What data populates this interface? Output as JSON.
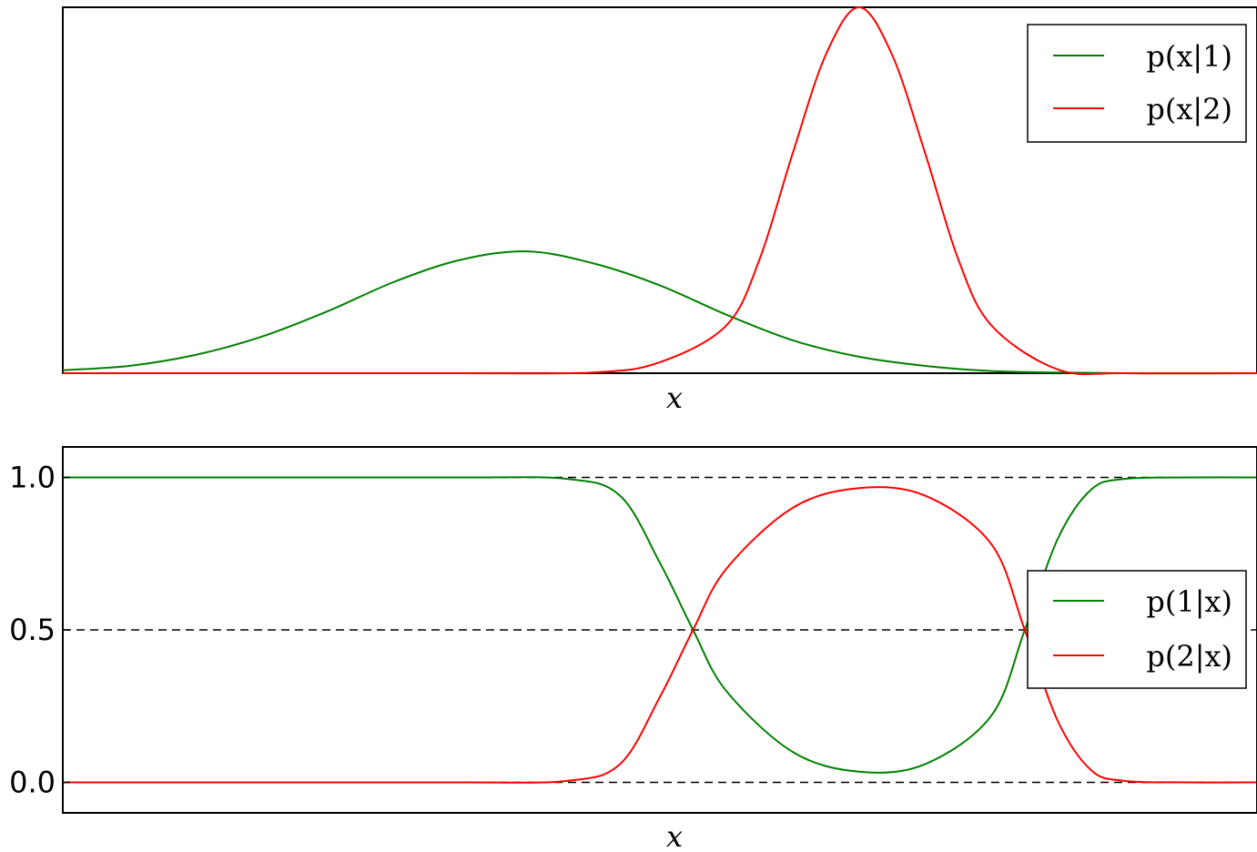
{
  "chart_data": [
    {
      "type": "line",
      "xlabel": "x",
      "ylabel": "",
      "xlim": [
        -4,
        5
      ],
      "ylim": [
        0,
        1.0
      ],
      "yticks": [],
      "legend": "top-right",
      "series": [
        {
          "name": "p(x|1)",
          "color": "#008000",
          "x": [
            -4.0,
            -3.5,
            -3.0,
            -2.5,
            -2.0,
            -1.5,
            -1.0,
            -0.5,
            0.0,
            0.5,
            1.0,
            1.5,
            2.0,
            2.5,
            3.0,
            3.5,
            4.0,
            4.5,
            5.0
          ],
          "y": [
            0.008,
            0.02,
            0.05,
            0.1,
            0.17,
            0.25,
            0.31,
            0.333,
            0.3,
            0.24,
            0.16,
            0.09,
            0.045,
            0.02,
            0.006,
            0.002,
            0.0,
            0.0,
            0.0
          ]
        },
        {
          "name": "p(x|2)",
          "color": "#ff0000",
          "x": [
            -4.0,
            -3.0,
            -2.0,
            -1.0,
            0.0,
            0.5,
            1.0,
            1.25,
            1.5,
            1.75,
            2.0,
            2.25,
            2.5,
            2.75,
            3.0,
            3.5,
            4.0,
            5.0
          ],
          "y": [
            0.0,
            0.0,
            0.0,
            0.0,
            0.002,
            0.03,
            0.13,
            0.31,
            0.6,
            0.87,
            1.0,
            0.87,
            0.6,
            0.31,
            0.13,
            0.01,
            0.0,
            0.0
          ]
        }
      ]
    },
    {
      "type": "line",
      "xlabel": "x",
      "ylabel": "",
      "xlim": [
        -4,
        5
      ],
      "ylim": [
        -0.1,
        1.1
      ],
      "yticks": [
        "0.0",
        "0.5",
        "1.0"
      ],
      "yticks_values": [
        0.0,
        0.5,
        1.0
      ],
      "hlines": [
        0.0,
        0.5,
        1.0
      ],
      "hline_style": "dashed",
      "legend": "center-right",
      "series": [
        {
          "name": "p(1|x)",
          "color": "#008000",
          "x": [
            -4.0,
            -3.0,
            -2.0,
            -1.0,
            -0.2,
            0.2,
            0.5,
            0.75,
            1.0,
            1.5,
            2.0,
            2.5,
            3.0,
            3.25,
            3.5,
            3.75,
            4.0,
            4.5,
            5.0
          ],
          "y": [
            1.0,
            1.0,
            1.0,
            1.0,
            0.995,
            0.94,
            0.72,
            0.5,
            0.3,
            0.1,
            0.035,
            0.06,
            0.22,
            0.5,
            0.8,
            0.96,
            0.995,
            1.0,
            1.0
          ]
        },
        {
          "name": "p(2|x)",
          "color": "#ff0000",
          "x": [
            -4.0,
            -3.0,
            -2.0,
            -1.0,
            -0.2,
            0.2,
            0.5,
            0.75,
            1.0,
            1.5,
            2.0,
            2.5,
            3.0,
            3.25,
            3.5,
            3.75,
            4.0,
            4.5,
            5.0
          ],
          "y": [
            0.0,
            0.0,
            0.0,
            0.0,
            0.005,
            0.06,
            0.28,
            0.5,
            0.7,
            0.9,
            0.965,
            0.94,
            0.78,
            0.5,
            0.2,
            0.04,
            0.005,
            0.0,
            0.0
          ]
        }
      ]
    }
  ]
}
